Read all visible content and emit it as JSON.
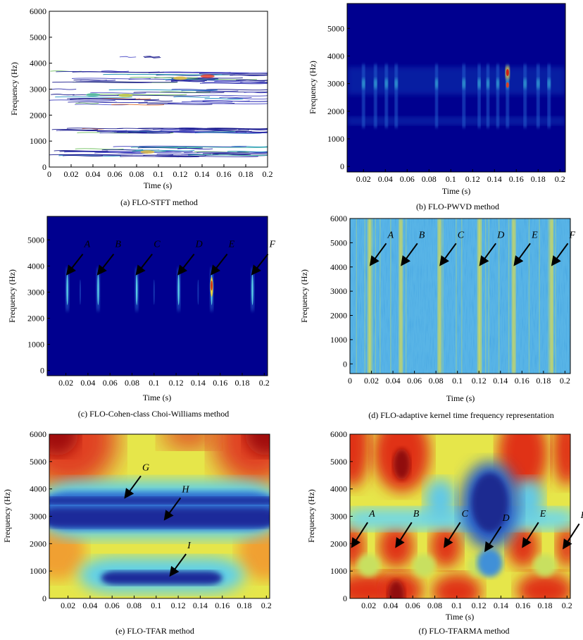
{
  "panels": [
    {
      "id": "a",
      "caption": "(a) FLO-STFT method",
      "chart_data": {
        "type": "heatmap",
        "title": "",
        "xlabel": "Time (s)",
        "ylabel": "Frequency (Hz)",
        "xlim": [
          0,
          0.2
        ],
        "ylim": [
          0,
          6000
        ],
        "xticks": [
          "0",
          "0.02",
          "0.04",
          "0.06",
          "0.08",
          "0.1",
          "0.12",
          "0.14",
          "0.16",
          "0.18",
          "0.2"
        ],
        "yticks": [
          "0",
          "1000",
          "2000",
          "3000",
          "4000",
          "5000",
          "6000"
        ],
        "background": "white",
        "energy_bands_hz": [
          [
            400,
            800
          ],
          [
            1300,
            1500
          ],
          [
            2400,
            3000
          ],
          [
            3200,
            3700
          ],
          [
            4200,
            4300
          ]
        ],
        "annotations": []
      }
    },
    {
      "id": "b",
      "caption": "(b) FLO-PWVD method",
      "chart_data": {
        "type": "heatmap",
        "title": "",
        "xlabel": "Time (s)",
        "ylabel": "Frequency (Hz)",
        "xlim": [
          0.005,
          0.205
        ],
        "ylim": [
          -200,
          5900
        ],
        "xticks": [
          "0.02",
          "0.04",
          "0.06",
          "0.08",
          "0.1",
          "0.12",
          "0.14",
          "0.16",
          "0.18",
          "0.2"
        ],
        "yticks": [
          "0",
          "1000",
          "2000",
          "3000",
          "4000",
          "5000"
        ],
        "background": "dark-blue",
        "peak_times_s": [
          0.02,
          0.031,
          0.041,
          0.05,
          0.087,
          0.112,
          0.126,
          0.134,
          0.143,
          0.152,
          0.168,
          0.18,
          0.19
        ],
        "energy_bands_hz": [
          [
            2600,
            3600
          ],
          [
            1500,
            1800
          ]
        ],
        "annotations": []
      }
    },
    {
      "id": "c",
      "caption": "(c) FLO-Cohen-class Choi-Williams method",
      "chart_data": {
        "type": "heatmap",
        "title": "",
        "xlabel": "Time (s)",
        "ylabel": "Frequency (Hz)",
        "xlim": [
          0.003,
          0.203
        ],
        "ylim": [
          -200,
          5900
        ],
        "xticks": [
          "0.02",
          "0.04",
          "0.06",
          "0.08",
          "0.1",
          "0.12",
          "0.14",
          "0.16",
          "0.18",
          "0.2"
        ],
        "yticks": [
          "0",
          "1000",
          "2000",
          "3000",
          "4000",
          "5000"
        ],
        "background": "dark-blue",
        "peak_times_s": [
          0.02,
          0.048,
          0.083,
          0.121,
          0.151,
          0.188
        ],
        "annotations": [
          {
            "label": "A",
            "t": 0.02
          },
          {
            "label": "B",
            "t": 0.048
          },
          {
            "label": "C",
            "t": 0.083
          },
          {
            "label": "D",
            "t": 0.121
          },
          {
            "label": "E",
            "t": 0.151
          },
          {
            "label": "F",
            "t": 0.188
          }
        ]
      }
    },
    {
      "id": "d",
      "caption": "(d) FLO-adaptive kernel time frequency representation",
      "chart_data": {
        "type": "heatmap",
        "title": "",
        "xlabel": "Time (s)",
        "ylabel": "Frequency (Hz)",
        "xlim": [
          0,
          0.205
        ],
        "ylim": [
          -400,
          6000
        ],
        "xticks": [
          "0",
          "0.02",
          "0.04",
          "0.06",
          "0.08",
          "0.1",
          "0.12",
          "0.14",
          "0.16",
          "0.18",
          "0.2"
        ],
        "yticks": [
          "0",
          "1000",
          "2000",
          "3000",
          "4000",
          "5000",
          "6000"
        ],
        "background": "light-blue",
        "peak_times_s": [
          0.018,
          0.047,
          0.083,
          0.12,
          0.152,
          0.187
        ],
        "annotations": [
          {
            "label": "A",
            "t": 0.018
          },
          {
            "label": "B",
            "t": 0.047
          },
          {
            "label": "C",
            "t": 0.083
          },
          {
            "label": "D",
            "t": 0.12
          },
          {
            "label": "E",
            "t": 0.152
          },
          {
            "label": "F",
            "t": 0.187
          }
        ]
      }
    },
    {
      "id": "e",
      "caption": "(e) FLO-TFAR method",
      "chart_data": {
        "type": "heatmap",
        "title": "",
        "xlabel": "",
        "ylabel": "Frequency (Hz)",
        "xlim": [
          0.003,
          0.203
        ],
        "ylim": [
          0,
          6000
        ],
        "xticks": [
          "0.02",
          "0.04",
          "0.06",
          "0.08",
          "0.1",
          "0.12",
          "0.14",
          "0.16",
          "0.18",
          "0.2"
        ],
        "yticks": [
          "0",
          "1000",
          "2000",
          "3000",
          "4000",
          "5000",
          "6000"
        ],
        "background": "yellow",
        "energy_bands_hz": [
          [
            3450,
            3700
          ],
          [
            2600,
            3300
          ],
          [
            500,
            1000
          ]
        ],
        "annotations": [
          {
            "label": "G",
            "t": 0.072,
            "f": 3700
          },
          {
            "label": "H",
            "t": 0.108,
            "f": 2900
          },
          {
            "label": "I",
            "t": 0.113,
            "f": 850
          }
        ]
      }
    },
    {
      "id": "f",
      "caption": "(f) FLO-TFARMA method",
      "chart_data": {
        "type": "heatmap",
        "title": "",
        "xlabel": "Time (s)",
        "ylabel": "Frequency (Hz)",
        "xlim": [
          0.003,
          0.203
        ],
        "ylim": [
          0,
          6000
        ],
        "xticks": [
          "0.02",
          "0.04",
          "0.06",
          "0.08",
          "0.1",
          "0.12",
          "0.14",
          "0.16",
          "0.18",
          "0.2"
        ],
        "yticks": [
          "0",
          "1000",
          "2000",
          "3000",
          "4000",
          "5000",
          "6000"
        ],
        "background": "red-yellow-blue",
        "annotations": [
          {
            "label": "A",
            "t": 0.005,
            "f": 1900
          },
          {
            "label": "B",
            "t": 0.045,
            "f": 1900
          },
          {
            "label": "C",
            "t": 0.089,
            "f": 1900
          },
          {
            "label": "D",
            "t": 0.126,
            "f": 1750
          },
          {
            "label": "E",
            "t": 0.16,
            "f": 1900
          },
          {
            "label": "F",
            "t": 0.197,
            "f": 1850
          }
        ]
      }
    }
  ],
  "colors": {
    "jet_dark": "#00008f",
    "jet_blue": "#1a3fb5",
    "jet_cyan": "#40c0e0",
    "jet_yellow": "#e8e850",
    "jet_red": "#c81a0a"
  }
}
